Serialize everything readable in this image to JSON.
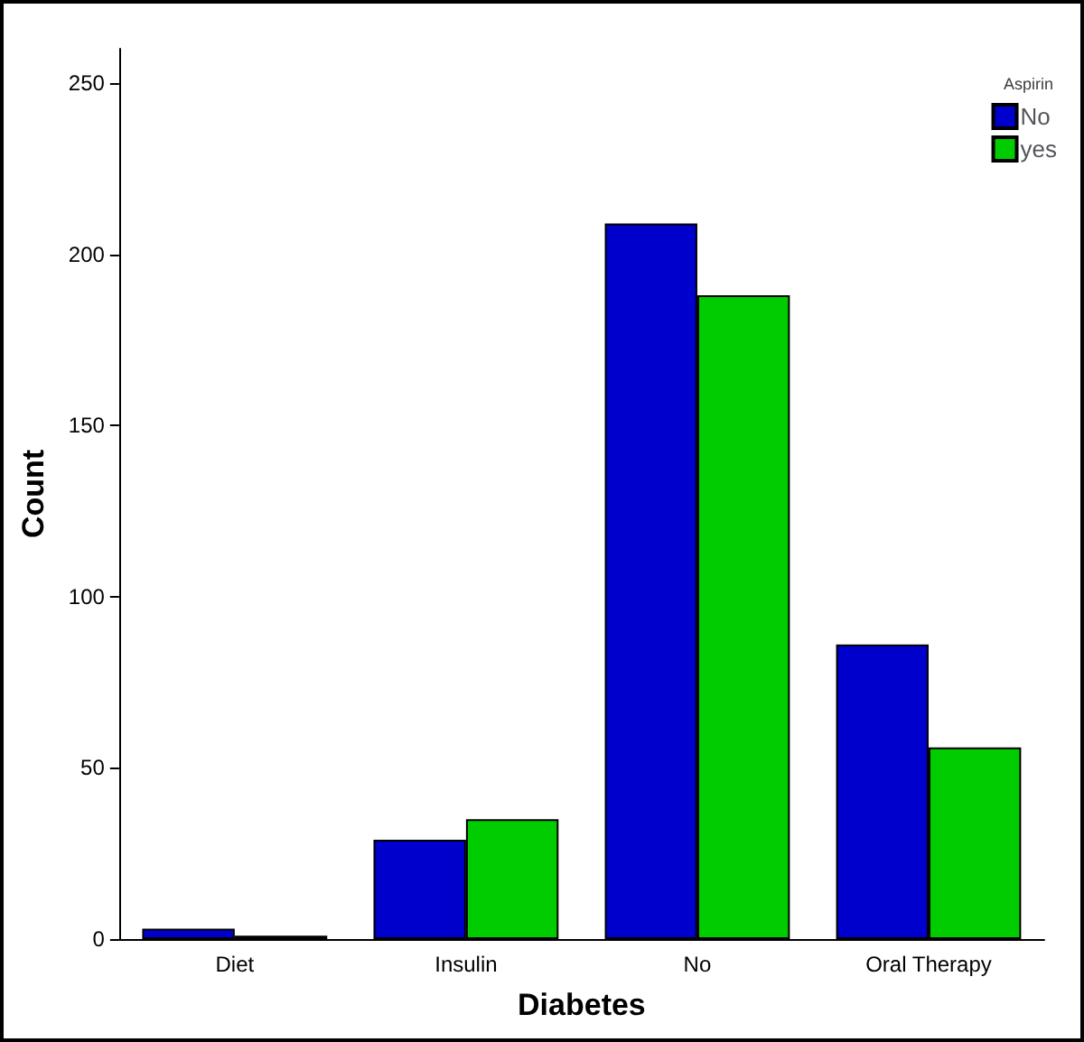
{
  "chart_data": {
    "type": "bar",
    "xlabel": "Diabetes",
    "ylabel": "Count",
    "legend_title": "Aspirin",
    "categories": [
      "Diet",
      "Insulin",
      "No",
      "Oral Therapy"
    ],
    "series": [
      {
        "name": "No",
        "color": "#0000cc",
        "values": [
          3,
          29,
          209,
          86
        ]
      },
      {
        "name": "yes",
        "color": "#00cc00",
        "values": [
          1,
          35,
          188,
          56
        ]
      }
    ],
    "ylim": [
      0,
      260
    ],
    "yticks": [
      0,
      50,
      100,
      150,
      200,
      250
    ],
    "grid": false,
    "legend": "top right"
  }
}
